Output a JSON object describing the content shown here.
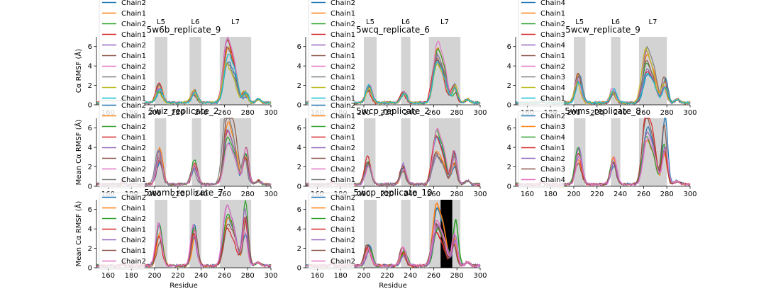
{
  "figure": {
    "background": "#ffffff"
  },
  "colors": {
    "Chain1": "#1f77b4",
    "Chain2": "#ff7f0e",
    "Chain3": "#2ca02c",
    "Chain4": "#d62728",
    "Chain5": "#9467bd",
    "Chain6": "#8c564b",
    "Chain7": "#e377c2",
    "Chain8": "#7f7f7f",
    "Chain9": "#bcbd22",
    "Chain10": "#17becf",
    "region": "#d3d3d3",
    "highlight": "#000000"
  },
  "chart_data": [
    {
      "type": "line",
      "title": "5w6b_replicate_9",
      "ylabel": "Cα RMSF (Å)",
      "xlabel": "",
      "xlim": [
        150,
        300
      ],
      "ylim": [
        0,
        7
      ],
      "xticks": [
        160,
        180,
        200,
        220,
        240,
        260,
        280,
        300
      ],
      "yticks": [
        0,
        2,
        4,
        6
      ],
      "loop_labels": [
        "L5",
        "L6",
        "L7"
      ],
      "shaded_ranges": [
        [
          200,
          211
        ],
        [
          230,
          240
        ],
        [
          256,
          283
        ]
      ],
      "legend": [
        "Chain2",
        "Chain1",
        "Chain2",
        "Chain1",
        "Chain2",
        "Chain1",
        "Chain2",
        "Chain1",
        "Chain2",
        "Chain1"
      ],
      "peaks": [
        1.6,
        1.0,
        5.2,
        1.0
      ]
    },
    {
      "type": "line",
      "title": "5wcq_replicate_6",
      "ylabel": "",
      "xlabel": "",
      "xlim": [
        150,
        300
      ],
      "ylim": [
        0,
        7
      ],
      "xticks": [
        160,
        180,
        200,
        220,
        240,
        260,
        280,
        300
      ],
      "yticks": [
        0,
        2,
        4,
        6
      ],
      "loop_labels": [
        "L5",
        "L6",
        "L7"
      ],
      "shaded_ranges": [
        [
          200,
          211
        ],
        [
          232,
          240
        ],
        [
          256,
          283
        ]
      ],
      "legend": [
        "Chain2",
        "Chain1",
        "Chain2",
        "Chain1",
        "Chain2",
        "Chain1",
        "Chain2",
        "Chain1",
        "Chain2",
        "Chain1"
      ],
      "peaks": [
        1.6,
        1.0,
        4.8,
        1.5
      ]
    },
    {
      "type": "line",
      "title": "5wcw_replicate_9",
      "ylabel": "",
      "xlabel": "",
      "xlim": [
        150,
        300
      ],
      "ylim": [
        0,
        7
      ],
      "xticks": [
        160,
        180,
        200,
        220,
        240,
        260,
        280,
        300
      ],
      "yticks": [
        0,
        2,
        4,
        6
      ],
      "loop_labels": [
        "L5",
        "L6",
        "L7"
      ],
      "shaded_ranges": [
        [
          200,
          210
        ],
        [
          232,
          240
        ],
        [
          256,
          280
        ]
      ],
      "legend": [
        "Chain4",
        "Chain1",
        "Chain2",
        "Chain3",
        "Chain4",
        "Chain1",
        "Chain2",
        "Chain3",
        "Chain4",
        "Chain1"
      ],
      "peaks": [
        2.5,
        1.2,
        4.5,
        2.5
      ]
    },
    {
      "type": "line",
      "title": "5wiz_replicate_2",
      "ylabel": "Mean Cα RMSF (Å)",
      "xlabel": "",
      "xlim": [
        150,
        300
      ],
      "ylim": [
        0,
        7
      ],
      "xticks": [
        160,
        180,
        200,
        220,
        240,
        260,
        280,
        300
      ],
      "yticks": [
        0,
        2,
        4,
        6
      ],
      "loop_labels": [],
      "shaded_ranges": [
        [
          200,
          210
        ],
        [
          232,
          240
        ],
        [
          256,
          283
        ]
      ],
      "legend": [
        "Chain2",
        "Chain1",
        "Chain2",
        "Chain1",
        "Chain2",
        "Chain1",
        "Chain2",
        "Chain1"
      ],
      "peaks": [
        3.0,
        2.2,
        6.5,
        3.5
      ]
    },
    {
      "type": "line",
      "title": "5wcp_replicate_2",
      "ylabel": "",
      "xlabel": "",
      "xlim": [
        150,
        300
      ],
      "ylim": [
        0,
        7
      ],
      "xticks": [
        160,
        180,
        200,
        220,
        240,
        260,
        280,
        300
      ],
      "yticks": [
        0,
        2,
        4,
        6
      ],
      "loop_labels": [],
      "shaded_ranges": [
        [
          200,
          210
        ],
        [
          232,
          240
        ],
        [
          256,
          283
        ]
      ],
      "legend": [
        "Chain2",
        "Chain1",
        "Chain2",
        "Chain1",
        "Chain2",
        "Chain1",
        "Chain2",
        "Chain1"
      ],
      "peaks": [
        2.5,
        1.8,
        4.5,
        3.2
      ]
    },
    {
      "type": "line",
      "title": "5wms_replicate_8",
      "ylabel": "",
      "xlabel": "",
      "xlim": [
        150,
        300
      ],
      "ylim": [
        0,
        7
      ],
      "xticks": [
        160,
        180,
        200,
        220,
        240,
        260,
        280,
        300
      ],
      "yticks": [
        0,
        2,
        4,
        6
      ],
      "loop_labels": [],
      "shaded_ranges": [
        [
          200,
          210
        ],
        [
          232,
          240
        ],
        [
          256,
          280
        ]
      ],
      "legend": [
        "Chain2",
        "Chain3",
        "Chain4",
        "Chain1",
        "Chain2",
        "Chain3",
        "Chain4"
      ],
      "peaks": [
        3.0,
        2.2,
        6.5,
        5.5
      ]
    },
    {
      "type": "line",
      "title": "5waml_replicate_7",
      "ylabel": "Mean Cα RMSF (Å)",
      "xlabel": "Residue",
      "xlim": [
        150,
        300
      ],
      "ylim": [
        0,
        7
      ],
      "xticks": [
        160,
        180,
        200,
        220,
        240,
        260,
        280,
        300
      ],
      "yticks": [
        0,
        2,
        4,
        6
      ],
      "loop_labels": [],
      "shaded_ranges": [
        [
          200,
          211
        ],
        [
          230,
          240
        ],
        [
          256,
          283
        ]
      ],
      "legend": [
        "Chain2",
        "Chain1",
        "Chain2",
        "Chain1",
        "Chain2",
        "Chain1",
        "Chain2"
      ],
      "peaks": [
        3.4,
        3.8,
        5.5,
        5.2
      ]
    },
    {
      "type": "line",
      "title": "5wcp_replicate_10",
      "ylabel": "",
      "xlabel": "Residue",
      "xlim": [
        150,
        300
      ],
      "ylim": [
        0,
        7
      ],
      "xticks": [
        160,
        180,
        200,
        220,
        240,
        260,
        280,
        300
      ],
      "yticks": [
        0,
        2,
        4,
        6
      ],
      "loop_labels": [],
      "shaded_ranges": [
        [
          200,
          211
        ],
        [
          232,
          240
        ],
        [
          256,
          283
        ]
      ],
      "highlight_range": [
        266,
        276
      ],
      "legend": [
        "Chain2",
        "Chain1",
        "Chain2",
        "Chain1",
        "Chain2",
        "Chain1",
        "Chain2"
      ],
      "peaks": [
        2.0,
        1.5,
        5.5,
        4.0
      ]
    }
  ]
}
